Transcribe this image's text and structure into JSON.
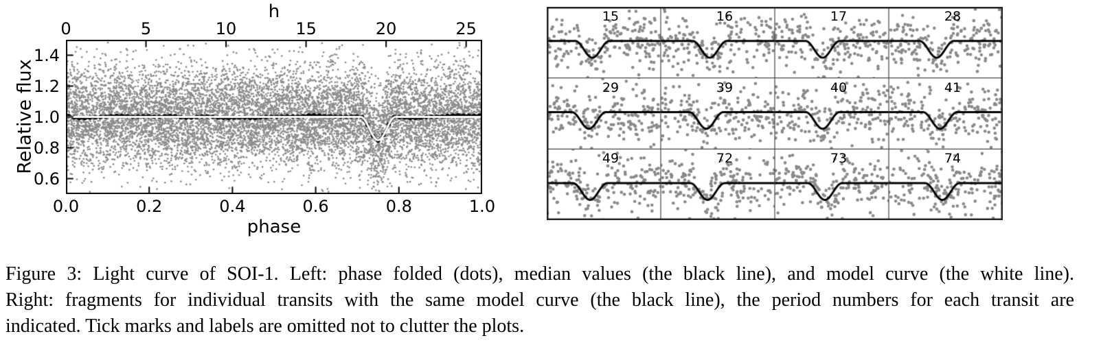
{
  "page": {
    "background": "#ffffff"
  },
  "caption": {
    "lines": [
      "Figure 3: Light curve of SOI-1. Left: phase folded (dots), median values (the black line), and model curve (the white line).",
      "Right: fragments for individual transits with the same model curve (the black line), the period numbers for each transit are",
      "indicated. Tick marks and labels are omitted not to clutter the plots."
    ]
  },
  "chart_data": [
    {
      "id": "phase-folded-light-curve",
      "type": "scatter",
      "title": "",
      "xlabel": "phase",
      "top_axis_label": "h",
      "ylabel": "Relative flux",
      "xlim": [
        0,
        1
      ],
      "ylim": [
        0.5,
        1.5
      ],
      "grid": false,
      "bottom_ticks": {
        "values": [
          0.0,
          0.2,
          0.4,
          0.6,
          0.8,
          1.0
        ],
        "labels": [
          "0.0",
          "0.2",
          "0.4",
          "0.6",
          "0.8",
          "1.0"
        ]
      },
      "top_ticks": {
        "values_hours": [
          0,
          5,
          10,
          15,
          20,
          25
        ],
        "labels": [
          "0",
          "5",
          "10",
          "15",
          "20",
          "25"
        ],
        "period_hours": 26
      },
      "y_ticks": {
        "values": [
          0.6,
          0.8,
          1.0,
          1.2,
          1.4
        ],
        "labels": [
          "0.6",
          "0.8",
          "1.0",
          "1.2",
          "1.4"
        ]
      },
      "transit_model": {
        "baseline_flux": 1.0,
        "center_phase": 0.75,
        "depth": 0.15,
        "half_width_phase": 0.042
      },
      "series": [
        {
          "name": "phase folded (dots)",
          "kind": "scatter",
          "color": "#8a8a8a",
          "n_points": 10000,
          "noise_sigma": 0.165,
          "dot_radius": 1.35,
          "seed": 12345
        },
        {
          "name": "median values (the black line)",
          "kind": "binned-median",
          "color": "#000000",
          "n_bins": 78,
          "wiggle_amplitude": 0.016,
          "dot_radius": 3.1,
          "line_width": 3.5,
          "seed": 777
        },
        {
          "name": "model curve (the white line)",
          "kind": "model-line",
          "color": "#ffffff",
          "line_width": 3
        }
      ],
      "axis_color": "#000000",
      "tick_length": 8
    },
    {
      "id": "individual-transits-grid",
      "type": "scatter-grid",
      "rows": 3,
      "cols": 4,
      "panels": [
        {
          "label": "15",
          "dip_center": 0.4
        },
        {
          "label": "16",
          "dip_center": 0.43
        },
        {
          "label": "17",
          "dip_center": 0.42
        },
        {
          "label": "28",
          "dip_center": 0.42
        },
        {
          "label": "29",
          "dip_center": 0.37
        },
        {
          "label": "39",
          "dip_center": 0.4
        },
        {
          "label": "40",
          "dip_center": 0.42
        },
        {
          "label": "41",
          "dip_center": 0.45
        },
        {
          "label": "49",
          "dip_center": 0.38
        },
        {
          "label": "72",
          "dip_center": 0.41
        },
        {
          "label": "73",
          "dip_center": 0.44
        },
        {
          "label": "74",
          "dip_center": 0.47
        }
      ],
      "dots": {
        "color": "#8a8a8a",
        "radius": 2.3,
        "n_points": 190,
        "noise_sigma_frac": 0.21,
        "seed_base": 1000
      },
      "model": {
        "color": "#000000",
        "line_width": 3,
        "flat_y_frac": 0.48,
        "depth_frac": 0.235,
        "half_width_frac": 0.15
      },
      "inner_border_color": "#444444",
      "outer_border_color": "#222222"
    }
  ]
}
